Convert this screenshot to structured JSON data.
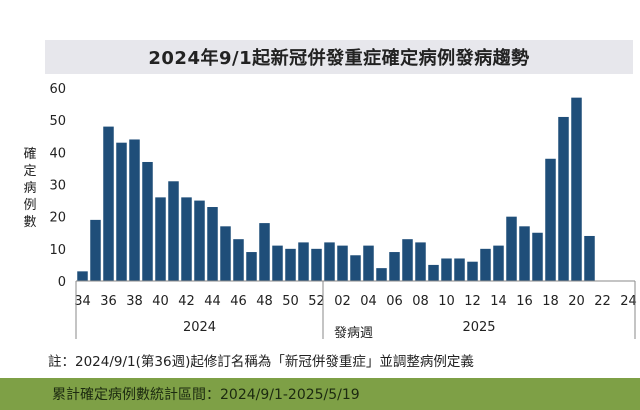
{
  "title": "2024年9/1起新冠併發重症確定病例發病趨勢",
  "note": "註：2024/9/1(第36週)起修訂名稱為「新冠併發重症」並調整病例定義",
  "footer": "累計確定病例數統計區間：2024/9/1-2025/5/19",
  "colors": {
    "bar": "#1f4e79",
    "footer_bg": "#7ea046",
    "title_bg": "#e7e7ec"
  },
  "chart_data": {
    "type": "bar",
    "title": "2024年9/1起新冠併發重症確定病例發病趨勢",
    "ylabel": "確定病例數",
    "xlabel": "發病週",
    "ylim": [
      0,
      60
    ],
    "yticks": [
      0,
      10,
      20,
      30,
      40,
      50,
      60
    ],
    "grid": false,
    "year_groups": [
      {
        "label": "2024",
        "from": "34",
        "to": "52"
      },
      {
        "label": "2025",
        "from": "01",
        "to": "24"
      }
    ],
    "categories": [
      "34",
      "35",
      "36",
      "37",
      "38",
      "39",
      "40",
      "41",
      "42",
      "43",
      "44",
      "45",
      "46",
      "47",
      "48",
      "49",
      "50",
      "51",
      "52",
      "01",
      "02",
      "03",
      "04",
      "05",
      "06",
      "07",
      "08",
      "09",
      "10",
      "11",
      "12",
      "13",
      "14",
      "15",
      "16",
      "17",
      "18",
      "19",
      "20",
      "21",
      "22",
      "23",
      "24"
    ],
    "tick_labels": [
      "34",
      "36",
      "38",
      "40",
      "42",
      "44",
      "46",
      "48",
      "50",
      "52",
      "02",
      "04",
      "06",
      "08",
      "10",
      "12",
      "14",
      "16",
      "18",
      "20",
      "22",
      "24"
    ],
    "values": [
      3,
      19,
      48,
      43,
      44,
      37,
      26,
      31,
      26,
      25,
      23,
      17,
      13,
      9,
      18,
      11,
      10,
      12,
      10,
      12,
      11,
      8,
      11,
      4,
      9,
      13,
      12,
      5,
      7,
      7,
      6,
      10,
      11,
      20,
      17,
      15,
      38,
      51,
      57,
      14,
      0,
      0,
      0
    ]
  }
}
